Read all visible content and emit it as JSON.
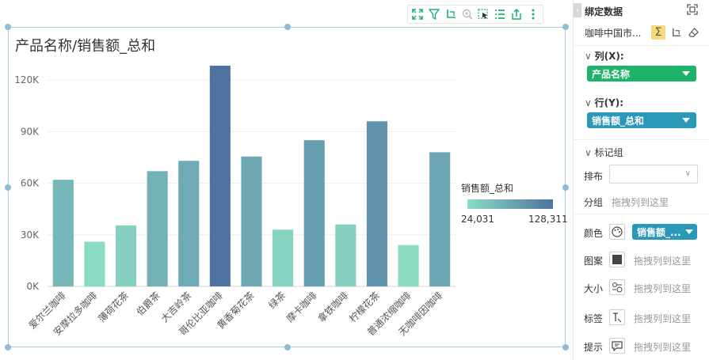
{
  "toolbar": {
    "icons": [
      "fullscreen-icon",
      "filter-icon",
      "drill-icon",
      "zoom-icon",
      "select-icon",
      "list-icon",
      "export-icon",
      "more-icon"
    ]
  },
  "chart_data": {
    "type": "bar",
    "title": "产品名称/销售额_总和",
    "categories": [
      "爱尔兰咖啡",
      "安摩拉多咖啡",
      "薄荷花茶",
      "伯爵茶",
      "大吉岭茶",
      "哥伦比亚咖啡",
      "黄香菊花茶",
      "绿茶",
      "摩卡咖啡",
      "拿铁咖啡",
      "柠檬花茶",
      "普通浓缩咖啡",
      "无咖啡因咖啡"
    ],
    "values": [
      62000,
      26000,
      35500,
      67000,
      73000,
      128311,
      75500,
      33000,
      85000,
      36000,
      96000,
      24031,
      78000
    ],
    "yticks": [
      "0K",
      "30K",
      "60K",
      "90K",
      "120K"
    ],
    "ylim": [
      0,
      132000
    ],
    "legend": {
      "title": "销售额_总和",
      "min": "24,031",
      "max": "128,311"
    },
    "color_min": "#8cdcc4",
    "color_max": "#4e73a1"
  },
  "panel": {
    "title": "绑定数据",
    "dataset": "咖啡中国市...",
    "columns_label": "列(X):",
    "columns_field": "产品名称",
    "rows_label": "行(Y):",
    "rows_field": "销售额_总和",
    "marks_label": "标记组",
    "layout_label": "排布",
    "group_label": "分组",
    "group_hint": "拖拽列到这里",
    "color_label": "颜色",
    "color_field": "销售额_...",
    "pattern_label": "图案",
    "pattern_hint": "拖拽列到这里",
    "size_label": "大小",
    "size_hint": "拖拽列到这里",
    "tag_label": "标签",
    "tag_hint": "拖拽列到这里",
    "tip_label": "提示",
    "tip_hint": "拖拽列到这里",
    "green": "#1eb26a",
    "teal": "#2a98b8"
  }
}
